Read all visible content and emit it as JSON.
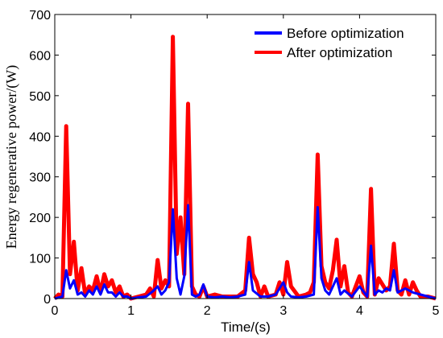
{
  "chart_data": {
    "type": "line",
    "title": "",
    "xlabel": "Time/(s)",
    "ylabel": "Energy regenerative power/(W)",
    "xlim": [
      0,
      5
    ],
    "ylim": [
      0,
      700
    ],
    "xticks": [
      0,
      1,
      2,
      3,
      4,
      5
    ],
    "yticks": [
      0,
      100,
      200,
      300,
      400,
      500,
      600,
      700
    ],
    "grid": false,
    "legend_position": "top-right",
    "series": [
      {
        "name": "Before optimization",
        "color": "#0000ff",
        "x": [
          0,
          0.1,
          0.15,
          0.2,
          0.25,
          0.3,
          0.35,
          0.4,
          0.45,
          0.5,
          0.55,
          0.6,
          0.65,
          0.7,
          0.75,
          0.8,
          0.85,
          0.9,
          0.95,
          1.0,
          1.1,
          1.2,
          1.3,
          1.35,
          1.4,
          1.45,
          1.5,
          1.55,
          1.6,
          1.65,
          1.7,
          1.75,
          1.8,
          1.85,
          1.9,
          1.95,
          2.0,
          2.1,
          2.2,
          2.3,
          2.4,
          2.5,
          2.55,
          2.6,
          2.7,
          2.8,
          2.9,
          3.0,
          3.05,
          3.1,
          3.2,
          3.3,
          3.4,
          3.45,
          3.5,
          3.55,
          3.6,
          3.65,
          3.7,
          3.75,
          3.8,
          3.9,
          4.0,
          4.1,
          4.15,
          4.2,
          4.25,
          4.3,
          4.35,
          4.4,
          4.45,
          4.5,
          4.6,
          4.7,
          4.8,
          4.9,
          5.0
        ],
        "y": [
          0,
          5,
          70,
          25,
          45,
          10,
          15,
          5,
          20,
          10,
          30,
          10,
          35,
          15,
          15,
          5,
          15,
          5,
          5,
          0,
          3,
          5,
          20,
          30,
          10,
          20,
          40,
          220,
          50,
          10,
          55,
          230,
          10,
          5,
          10,
          35,
          5,
          3,
          5,
          3,
          5,
          10,
          90,
          20,
          5,
          5,
          10,
          40,
          15,
          5,
          3,
          5,
          10,
          225,
          50,
          20,
          10,
          30,
          50,
          10,
          20,
          5,
          30,
          5,
          130,
          10,
          20,
          15,
          25,
          20,
          70,
          15,
          25,
          15,
          10,
          5,
          0
        ]
      },
      {
        "name": "After optimization",
        "color": "#ff0000",
        "x": [
          0,
          0.05,
          0.1,
          0.15,
          0.2,
          0.25,
          0.3,
          0.35,
          0.4,
          0.45,
          0.5,
          0.55,
          0.6,
          0.65,
          0.7,
          0.75,
          0.8,
          0.85,
          0.9,
          0.95,
          1.0,
          1.1,
          1.2,
          1.25,
          1.3,
          1.35,
          1.4,
          1.45,
          1.5,
          1.55,
          1.6,
          1.65,
          1.7,
          1.75,
          1.8,
          1.85,
          1.9,
          1.95,
          2.0,
          2.1,
          2.2,
          2.3,
          2.4,
          2.5,
          2.55,
          2.6,
          2.65,
          2.7,
          2.75,
          2.8,
          2.9,
          2.95,
          3.0,
          3.05,
          3.1,
          3.2,
          3.3,
          3.35,
          3.4,
          3.45,
          3.5,
          3.55,
          3.6,
          3.65,
          3.7,
          3.75,
          3.8,
          3.85,
          3.9,
          4.0,
          4.05,
          4.1,
          4.15,
          4.2,
          4.25,
          4.3,
          4.35,
          4.4,
          4.45,
          4.5,
          4.55,
          4.6,
          4.65,
          4.7,
          4.75,
          4.8,
          4.9,
          5.0
        ],
        "y": [
          0,
          10,
          5,
          425,
          60,
          140,
          20,
          75,
          10,
          30,
          20,
          55,
          15,
          60,
          30,
          45,
          15,
          30,
          5,
          10,
          0,
          5,
          10,
          25,
          5,
          95,
          25,
          45,
          30,
          645,
          110,
          200,
          60,
          480,
          30,
          10,
          5,
          30,
          5,
          10,
          5,
          5,
          5,
          20,
          150,
          60,
          40,
          5,
          30,
          5,
          10,
          40,
          10,
          90,
          30,
          5,
          10,
          15,
          40,
          355,
          80,
          40,
          25,
          70,
          145,
          30,
          80,
          15,
          5,
          55,
          15,
          5,
          270,
          10,
          50,
          35,
          20,
          30,
          135,
          20,
          10,
          45,
          10,
          40,
          20,
          5,
          5,
          0
        ]
      }
    ]
  }
}
